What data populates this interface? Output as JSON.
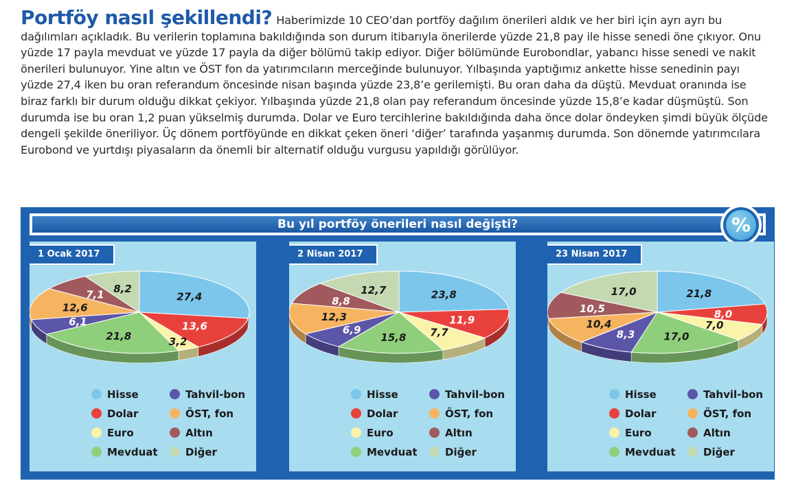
{
  "article": {
    "headline": "Portföy nasıl şekillendi?",
    "body": "Haberimizde 10 CEO’dan portföy dağılım önerileri aldık ve her biri için ayrı ayrı bu dağılımları açıkladık. Bu verilerin toplamına bakıldığında son durum itibarıyla önerilerde yüzde 21,8 pay ile hisse senedi öne çıkıyor. Onu yüzde 17 payla mevduat ve yüzde 17 payla da diğer bölümü takip ediyor. Diğer bölümünde Eurobondlar, yabancı hisse senedi ve nakit önerileri bulunuyor. Yine altın ve ÖST fon da yatırımcıların merceğinde bulunuyor. Yılbaşında yaptığımız ankette hisse senedinin payı yüzde 27,4 iken bu oran referandum öncesinde nisan başında yüzde 23,8’e gerilemişti. Bu oran daha da düştü. Mevduat oranında ise biraz farklı bir durum olduğu dikkat çekiyor. Yılbaşında yüzde 21,8 olan pay referandum öncesinde yüzde 15,8’e kadar düşmüştü. Son durumda ise bu oran 1,2 puan yükselmiş durumda. Dolar ve Euro tercihlerine bakıldığında daha önce dolar öndeyken şimdi büyük ölçüde dengeli şekilde öneriliyor. Üç dönem portföyünde en dikkat çeken öneri ‘diğer’ tarafında yaşanmış durumda. Son dönemde yatırımcılara Eurobond ve yurtdışı piyasaların da önemli bir alternatif olduğu vurgusu yapıldığı görülüyor."
  },
  "panel": {
    "title": "Bu yıl portföy önerileri nasıl değişti?",
    "badge": "%"
  },
  "colors": {
    "Hisse": "#7cc6ec",
    "Dolar": "#e8413c",
    "Euro": "#fbf3a9",
    "Mevduat": "#8fcf7c",
    "Tahvil-bon": "#5b56a8",
    "ÖST, fon": "#f6b461",
    "Altın": "#a05a5e",
    "Diğer": "#c4d8b1"
  },
  "legend": [
    "Hisse",
    "Tahvil-bon",
    "Dolar",
    "ÖST, fon",
    "Euro",
    "Altın",
    "Mevduat",
    "Diğer"
  ],
  "chart_data": [
    {
      "type": "pie",
      "title": "1 Ocak 2017",
      "categories": [
        "Hisse",
        "Dolar",
        "Euro",
        "Mevduat",
        "Tahvil-bon",
        "ÖST, fon",
        "Altın",
        "Diğer"
      ],
      "values": [
        27.4,
        13.6,
        3.2,
        21.8,
        6.1,
        12.6,
        7.1,
        8.2
      ],
      "labels": [
        "27,4",
        "13,6",
        "3,2",
        "21,8",
        "6,1",
        "12,6",
        "7,1",
        "8,2"
      ]
    },
    {
      "type": "pie",
      "title": "2 Nisan 2017",
      "categories": [
        "Hisse",
        "Dolar",
        "Euro",
        "Mevduat",
        "Tahvil-bon",
        "ÖST, fon",
        "Altın",
        "Diğer"
      ],
      "values": [
        23.8,
        11.9,
        7.7,
        15.8,
        6.9,
        12.3,
        8.8,
        12.7
      ],
      "labels": [
        "23,8",
        "11,9",
        "7,7",
        "15,8",
        "6,9",
        "12,3",
        "8,8",
        "12,7"
      ]
    },
    {
      "type": "pie",
      "title": "23 Nisan 2017",
      "categories": [
        "Hisse",
        "Dolar",
        "Euro",
        "Mevduat",
        "Tahvil-bon",
        "ÖST, fon",
        "Altın",
        "Diğer"
      ],
      "values": [
        21.8,
        8.0,
        7.0,
        17.0,
        8.3,
        10.4,
        10.5,
        17.0
      ],
      "labels": [
        "21,8",
        "8,0",
        "7,0",
        "17,0",
        "8,3",
        "10,4",
        "10,5",
        "17,0"
      ]
    }
  ]
}
